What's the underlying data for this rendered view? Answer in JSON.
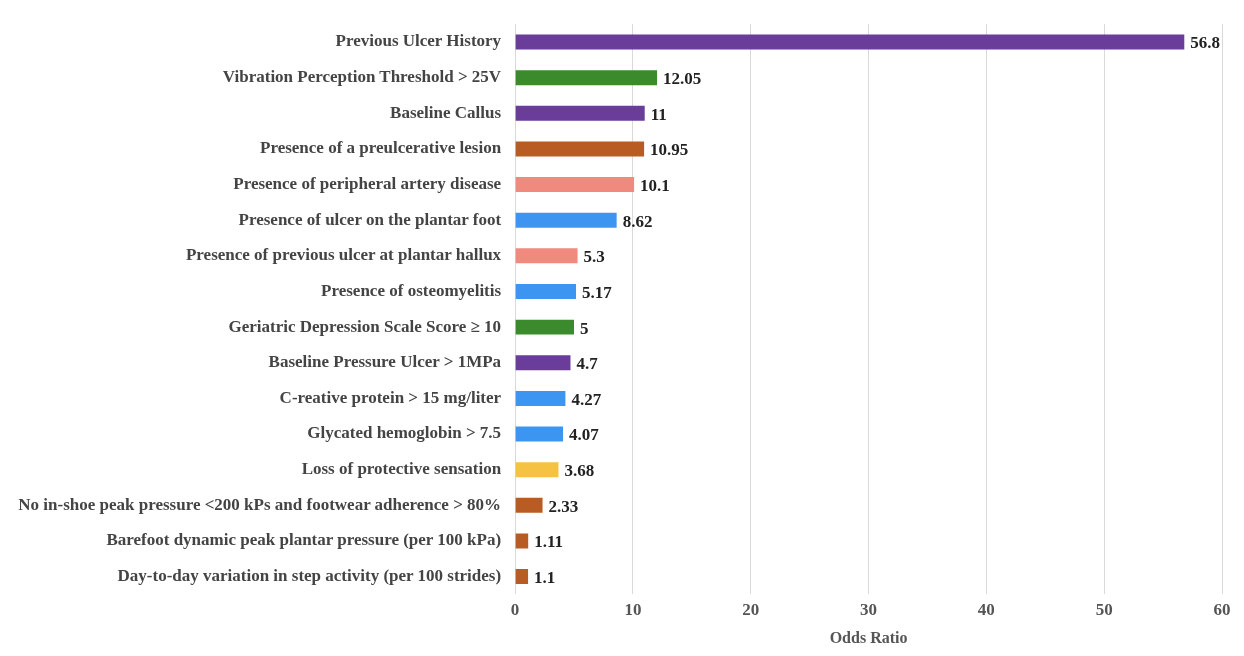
{
  "chart_data": {
    "type": "bar",
    "orientation": "horizontal",
    "xlabel": "Odds Ratio",
    "categories": [
      "Previous Ulcer History",
      "Vibration Perception Threshold > 25V",
      "Baseline Callus",
      "Presence of a preulcerative lesion",
      "Presence of peripheral artery disease",
      "Presence of ulcer on the plantar foot",
      "Presence of previous ulcer at plantar hallux",
      "Presence of osteomyelitis",
      "Geriatric Depression Scale Score ≥ 10",
      "Baseline Pressure Ulcer > 1MPa",
      "C-reative protein > 15 mg/liter",
      "Glycated hemoglobin > 7.5",
      "Loss of protective sensation",
      "No in-shoe peak pressure <200 kPs and footwear adherence > 80%",
      "Barefoot dynamic peak plantar pressure (per 100 kPa)",
      "Day-to-day variation in step activity (per 100 strides)"
    ],
    "values": [
      56.8,
      12.05,
      11,
      10.95,
      10.1,
      8.62,
      5.3,
      5.17,
      5,
      4.7,
      4.27,
      4.07,
      3.68,
      2.33,
      1.11,
      1.1
    ],
    "colors": [
      "#6a3d9a",
      "#3b8a2c",
      "#6a3d9a",
      "#b85c24",
      "#f08a7e",
      "#3d95f2",
      "#f08a7e",
      "#3d95f2",
      "#3b8a2c",
      "#6a3d9a",
      "#3d95f2",
      "#3d95f2",
      "#f5c243",
      "#b85c24",
      "#b85c24",
      "#b85c24"
    ],
    "xlim": [
      0,
      60
    ],
    "xticks": [
      0,
      10,
      20,
      30,
      40,
      50,
      60
    ],
    "grid": "x",
    "data_labels": true,
    "legend": false
  }
}
